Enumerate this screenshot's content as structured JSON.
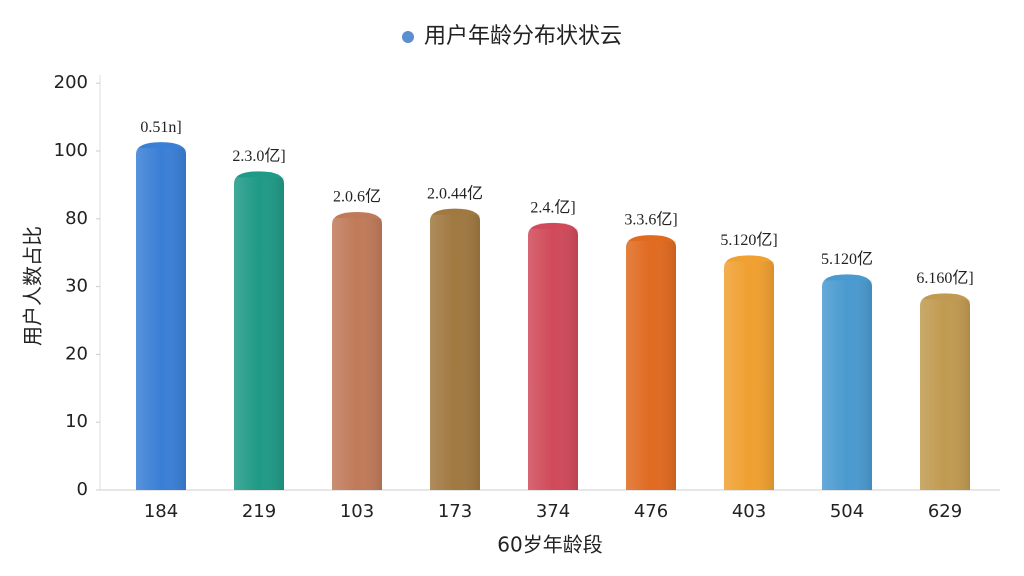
{
  "chart_data": {
    "type": "bar",
    "legend": "top",
    "xlabel": "60岁年龄段",
    "ylabel": "用户人数占比",
    "categories": [
      "184",
      "219",
      "103",
      "173",
      "374",
      "476",
      "403",
      "504",
      "629"
    ],
    "series": [
      {
        "name": "用户年龄分布状状云",
        "color": "#5b8fd0",
        "values": [
          113,
          94,
          82,
          83,
          77,
          68,
          53,
          39,
          29
        ]
      }
    ],
    "colors": [
      "#3a7fd6",
      "#1f9a86",
      "#c07a5a",
      "#a07840",
      "#d04a5a",
      "#e06a20",
      "#f0a030",
      "#4a9ad0",
      "#c09a50"
    ],
    "annotations": [
      "0.51n]",
      "2.3.0亿]",
      "2.0.6亿",
      "2.0.44亿",
      "2.4.亿]",
      "3.3.6亿]",
      "5.120亿]",
      "5.120亿",
      "6.160亿]"
    ],
    "ylim": [
      0,
      200
    ],
    "yticks": [
      0,
      10,
      20,
      30,
      80,
      100,
      200
    ]
  }
}
